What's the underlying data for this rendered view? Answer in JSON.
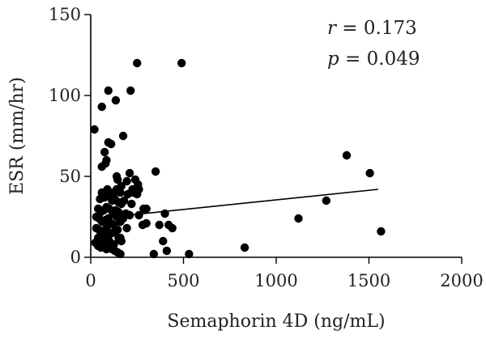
{
  "chart_data": {
    "type": "scatter",
    "xlabel": "Semaphorin 4D (ng/mL)",
    "ylabel": "ESR (mm/hr)",
    "xlim": [
      0,
      2000
    ],
    "ylim": [
      0,
      150
    ],
    "xticks": [
      "0",
      "500",
      "1000",
      "1500",
      "2000"
    ],
    "yticks": [
      "0",
      "50",
      "100",
      "150"
    ],
    "annotations": {
      "r_symbol": "r",
      "r_text": " = 0.173",
      "p_symbol": "p",
      "p_text": " = 0.049"
    },
    "fit_line": {
      "x": [
        30,
        1550
      ],
      "y": [
        24,
        42
      ]
    },
    "points": {
      "x": [
        250,
        490,
        95,
        215,
        60,
        135,
        20,
        175,
        95,
        110,
        75,
        85,
        80,
        60,
        140,
        210,
        145,
        195,
        240,
        165,
        255,
        225,
        60,
        90,
        110,
        125,
        140,
        100,
        160,
        200,
        230,
        250,
        260,
        285,
        50,
        65,
        75,
        115,
        130,
        150,
        165,
        180,
        220,
        300,
        350,
        370,
        400,
        420,
        440,
        40,
        55,
        70,
        85,
        100,
        120,
        135,
        150,
        170,
        190,
        210,
        260,
        280,
        300,
        30,
        45,
        60,
        80,
        95,
        110,
        125,
        140,
        160,
        175,
        195,
        30,
        45,
        55,
        70,
        85,
        100,
        115,
        130,
        145,
        160,
        40,
        55,
        70,
        85,
        100,
        125,
        150,
        390,
        165,
        25,
        40,
        55,
        70,
        85,
        100,
        115,
        130,
        145,
        160,
        340,
        410,
        530,
        830,
        1120,
        1270,
        1380,
        1505,
        1565
      ],
      "y": [
        120,
        120,
        103,
        103,
        93,
        97,
        79,
        75,
        71,
        70,
        65,
        60,
        58,
        56,
        50,
        52,
        48,
        47,
        48,
        44,
        45,
        42,
        40,
        42,
        38,
        40,
        42,
        38,
        40,
        39,
        40,
        39,
        42,
        30,
        36,
        38,
        37,
        35,
        36,
        34,
        33,
        35,
        33,
        30,
        53,
        20,
        27,
        20,
        18,
        30,
        28,
        29,
        31,
        30,
        27,
        29,
        28,
        26,
        27,
        26,
        26,
        20,
        21,
        25,
        24,
        22,
        23,
        24,
        21,
        20,
        25,
        22,
        24,
        18,
        18,
        17,
        15,
        16,
        18,
        14,
        15,
        16,
        17,
        12,
        12,
        10,
        11,
        9,
        10,
        8,
        12,
        10,
        10,
        9,
        7,
        6,
        7,
        5,
        6,
        5,
        4,
        3,
        2,
        2,
        4,
        2,
        6,
        24,
        35,
        63,
        52,
        16
      ]
    }
  }
}
